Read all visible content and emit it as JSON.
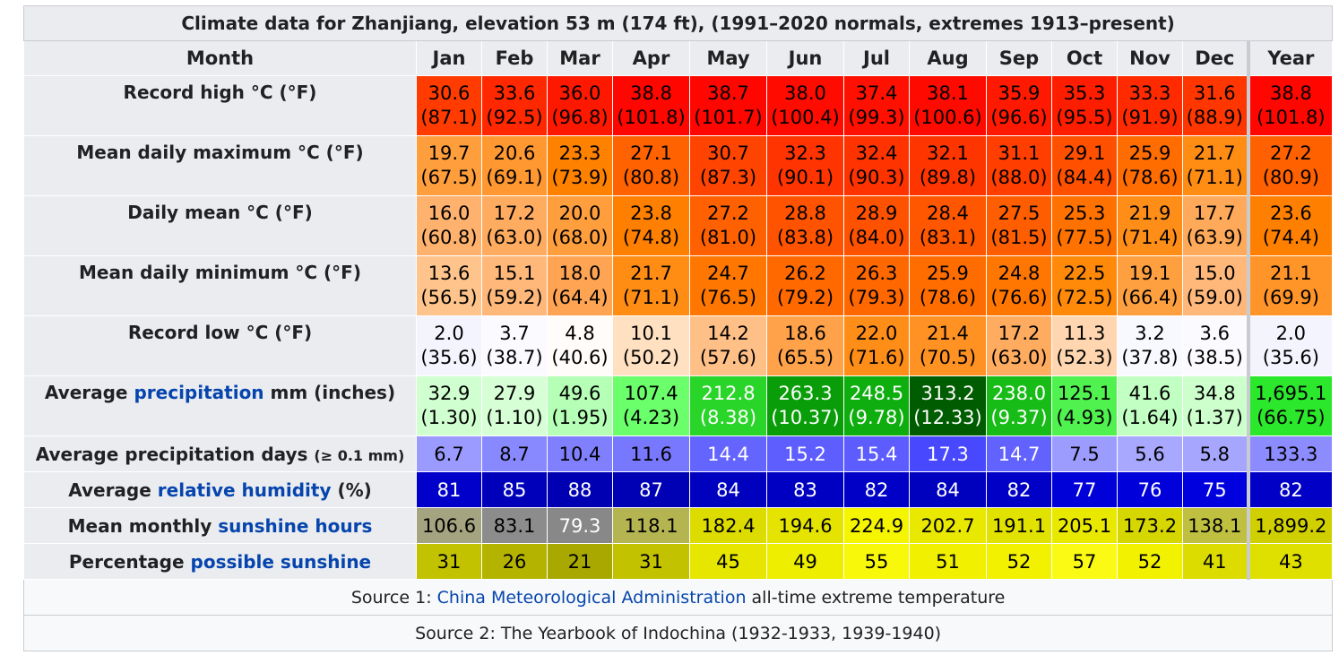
{
  "title": "Climate data for Zhanjiang, elevation 53 m (174 ft), (1991–2020 normals, extremes 1913–present)",
  "header": {
    "month_label": "Month",
    "months": [
      "Jan",
      "Feb",
      "Mar",
      "Apr",
      "May",
      "Jun",
      "Jul",
      "Aug",
      "Sep",
      "Oct",
      "Nov",
      "Dec"
    ],
    "year_label": "Year"
  },
  "rows": [
    {
      "label_parts": [
        {
          "text": "Record high °C (°F)"
        }
      ],
      "kind": "double",
      "cells": [
        [
          "30.6",
          "(87.1)",
          "#ff3b00",
          "#000"
        ],
        [
          "33.6",
          "(92.5)",
          "#ff2800",
          "#000"
        ],
        [
          "36.0",
          "(96.8)",
          "#ff1800",
          "#000"
        ],
        [
          "38.8",
          "(101.8)",
          "#ff0600",
          "#000"
        ],
        [
          "38.7",
          "(101.7)",
          "#ff0600",
          "#000"
        ],
        [
          "38.0",
          "(100.4)",
          "#ff0b00",
          "#000"
        ],
        [
          "37.4",
          "(99.3)",
          "#ff1000",
          "#000"
        ],
        [
          "38.1",
          "(100.6)",
          "#ff0a00",
          "#000"
        ],
        [
          "35.9",
          "(96.6)",
          "#ff1900",
          "#000"
        ],
        [
          "35.3",
          "(95.5)",
          "#ff1d00",
          "#000"
        ],
        [
          "33.3",
          "(91.9)",
          "#ff2a00",
          "#000"
        ],
        [
          "31.6",
          "(88.9)",
          "#ff3600",
          "#000"
        ],
        [
          "38.8",
          "(101.8)",
          "#ff0600",
          "#000"
        ]
      ]
    },
    {
      "label_parts": [
        {
          "text": "Mean daily maximum °C (°F)"
        }
      ],
      "kind": "double",
      "cells": [
        [
          "19.7",
          "(67.5)",
          "#ff9e3c",
          "#000"
        ],
        [
          "20.6",
          "(69.1)",
          "#ff9830",
          "#000"
        ],
        [
          "23.3",
          "(73.9)",
          "#ff8100",
          "#000"
        ],
        [
          "27.1",
          "(80.8)",
          "#ff6200",
          "#000"
        ],
        [
          "30.7",
          "(87.3)",
          "#ff4300",
          "#000"
        ],
        [
          "32.3",
          "(90.1)",
          "#ff3400",
          "#000"
        ],
        [
          "32.4",
          "(90.3)",
          "#ff3300",
          "#000"
        ],
        [
          "32.1",
          "(89.8)",
          "#ff3500",
          "#000"
        ],
        [
          "31.1",
          "(88.0)",
          "#ff3e00",
          "#000"
        ],
        [
          "29.1",
          "(84.4)",
          "#ff5000",
          "#000"
        ],
        [
          "25.9",
          "(78.6)",
          "#ff6c00",
          "#000"
        ],
        [
          "21.7",
          "(71.1)",
          "#ff8d14",
          "#000"
        ],
        [
          "27.2",
          "(80.9)",
          "#ff6100",
          "#000"
        ]
      ]
    },
    {
      "label_parts": [
        {
          "text": "Daily mean °C (°F)"
        }
      ],
      "kind": "double",
      "cells": [
        [
          "16.0",
          "(60.8)",
          "#ffb26e",
          "#000"
        ],
        [
          "17.2",
          "(63.0)",
          "#ffac60",
          "#000"
        ],
        [
          "20.0",
          "(68.0)",
          "#ff9e3c",
          "#000"
        ],
        [
          "23.8",
          "(74.8)",
          "#ff7f00",
          "#000"
        ],
        [
          "27.2",
          "(81.0)",
          "#ff6100",
          "#000"
        ],
        [
          "28.8",
          "(83.8)",
          "#ff5300",
          "#000"
        ],
        [
          "28.9",
          "(84.0)",
          "#ff5200",
          "#000"
        ],
        [
          "28.4",
          "(83.1)",
          "#ff5600",
          "#000"
        ],
        [
          "27.5",
          "(81.5)",
          "#ff5e00",
          "#000"
        ],
        [
          "25.3",
          "(77.5)",
          "#ff7200",
          "#000"
        ],
        [
          "21.9",
          "(71.4)",
          "#ff8e18",
          "#000"
        ],
        [
          "17.7",
          "(63.9)",
          "#ffaa5a",
          "#000"
        ],
        [
          "23.6",
          "(74.4)",
          "#ff8000",
          "#000"
        ]
      ]
    },
    {
      "label_parts": [
        {
          "text": "Mean daily minimum °C (°F)"
        }
      ],
      "kind": "double",
      "cells": [
        [
          "13.6",
          "(56.5)",
          "#ffc48c",
          "#000"
        ],
        [
          "15.1",
          "(59.2)",
          "#ffb87a",
          "#000"
        ],
        [
          "18.0",
          "(64.4)",
          "#ffa452",
          "#000"
        ],
        [
          "21.7",
          "(71.1)",
          "#ff8d14",
          "#000"
        ],
        [
          "24.7",
          "(76.5)",
          "#ff7700",
          "#000"
        ],
        [
          "26.2",
          "(79.2)",
          "#ff6900",
          "#000"
        ],
        [
          "26.3",
          "(79.3)",
          "#ff6800",
          "#000"
        ],
        [
          "25.9",
          "(78.6)",
          "#ff6c00",
          "#000"
        ],
        [
          "24.8",
          "(76.6)",
          "#ff7600",
          "#000"
        ],
        [
          "22.5",
          "(72.5)",
          "#ff8a0a",
          "#000"
        ],
        [
          "19.1",
          "(66.4)",
          "#ffa040",
          "#000"
        ],
        [
          "15.0",
          "(59.0)",
          "#ffb87a",
          "#000"
        ],
        [
          "21.1",
          "(69.9)",
          "#ff9428",
          "#000"
        ]
      ]
    },
    {
      "label_parts": [
        {
          "text": "Record low °C (°F)"
        }
      ],
      "kind": "double",
      "cells": [
        [
          "2.0",
          "(35.6)",
          "#f4f4ff",
          "#000"
        ],
        [
          "3.7",
          "(38.7)",
          "#fafaff",
          "#000"
        ],
        [
          "4.8",
          "(40.6)",
          "#fffcfa",
          "#000"
        ],
        [
          "10.1",
          "(50.2)",
          "#ffe0c0",
          "#000"
        ],
        [
          "14.2",
          "(57.6)",
          "#ffc088",
          "#000"
        ],
        [
          "18.6",
          "(65.5)",
          "#ffa24a",
          "#000"
        ],
        [
          "22.0",
          "(71.6)",
          "#ff8e18",
          "#000"
        ],
        [
          "21.4",
          "(70.5)",
          "#ff9222",
          "#000"
        ],
        [
          "17.2",
          "(63.0)",
          "#ffac60",
          "#000"
        ],
        [
          "11.3",
          "(52.3)",
          "#ffd6b0",
          "#000"
        ],
        [
          "3.2",
          "(37.8)",
          "#f8f8ff",
          "#000"
        ],
        [
          "3.6",
          "(38.5)",
          "#fafaff",
          "#000"
        ],
        [
          "2.0",
          "(35.6)",
          "#f4f4ff",
          "#000"
        ]
      ]
    },
    {
      "label_parts": [
        {
          "text": "Average "
        },
        {
          "text": "precipitation",
          "link": true
        },
        {
          "text": " mm (inches)"
        }
      ],
      "kind": "double",
      "cells": [
        [
          "32.9",
          "(1.30)",
          "#d0ffd0",
          "#000"
        ],
        [
          "27.9",
          "(1.10)",
          "#d6ffd6",
          "#000"
        ],
        [
          "49.6",
          "(1.95)",
          "#b6ffb6",
          "#000"
        ],
        [
          "107.4",
          "(4.23)",
          "#6cff6c",
          "#000"
        ],
        [
          "212.8",
          "(8.38)",
          "#2ad52a",
          "#fff"
        ],
        [
          "263.3",
          "(10.37)",
          "#099e09",
          "#fff"
        ],
        [
          "248.5",
          "(9.78)",
          "#0fae0f",
          "#fff"
        ],
        [
          "313.2",
          "(12.33)",
          "#005c00",
          "#fff"
        ],
        [
          "238.0",
          "(9.37)",
          "#17bc17",
          "#fff"
        ],
        [
          "125.1",
          "(4.93)",
          "#50f250",
          "#000"
        ],
        [
          "41.6",
          "(1.64)",
          "#c2ffc2",
          "#000"
        ],
        [
          "34.8",
          "(1.37)",
          "#ccffcc",
          "#000"
        ],
        [
          "1,695.1",
          "(66.75)",
          "#2ce82c",
          "#000"
        ]
      ]
    },
    {
      "label_parts": [
        {
          "text": "Average precipitation days "
        },
        {
          "text": "(≥ 0.1 mm)",
          "small": true
        }
      ],
      "kind": "single",
      "cells": [
        [
          "6.7",
          "",
          "#9a9aff",
          "#000"
        ],
        [
          "8.7",
          "",
          "#8888ff",
          "#000"
        ],
        [
          "10.4",
          "",
          "#8080ff",
          "#000"
        ],
        [
          "11.6",
          "",
          "#7878ff",
          "#000"
        ],
        [
          "14.4",
          "",
          "#6464ff",
          "#fff"
        ],
        [
          "15.2",
          "",
          "#5e5eff",
          "#fff"
        ],
        [
          "15.4",
          "",
          "#5c5cff",
          "#fff"
        ],
        [
          "17.3",
          "",
          "#4848ff",
          "#fff"
        ],
        [
          "14.7",
          "",
          "#6262ff",
          "#fff"
        ],
        [
          "7.5",
          "",
          "#9c9cff",
          "#000"
        ],
        [
          "5.6",
          "",
          "#a8a8ff",
          "#000"
        ],
        [
          "5.8",
          "",
          "#a6a6ff",
          "#000"
        ],
        [
          "133.3",
          "",
          "#8c8cff",
          "#000"
        ]
      ]
    },
    {
      "label_parts": [
        {
          "text": "Average "
        },
        {
          "text": "relative humidity",
          "link": true
        },
        {
          "text": " (%)"
        }
      ],
      "kind": "single",
      "cells": [
        [
          "81",
          "",
          "#0000ca",
          "#fff"
        ],
        [
          "85",
          "",
          "#0000bb",
          "#fff"
        ],
        [
          "88",
          "",
          "#0000b2",
          "#fff"
        ],
        [
          "87",
          "",
          "#0000b5",
          "#fff"
        ],
        [
          "84",
          "",
          "#0000bf",
          "#fff"
        ],
        [
          "83",
          "",
          "#0000c2",
          "#fff"
        ],
        [
          "82",
          "",
          "#0000c6",
          "#fff"
        ],
        [
          "84",
          "",
          "#0000bf",
          "#fff"
        ],
        [
          "82",
          "",
          "#0000c6",
          "#fff"
        ],
        [
          "77",
          "",
          "#0000d8",
          "#fff"
        ],
        [
          "76",
          "",
          "#0000db",
          "#fff"
        ],
        [
          "75",
          "",
          "#0000de",
          "#fff"
        ],
        [
          "82",
          "",
          "#0000c6",
          "#fff"
        ]
      ]
    },
    {
      "label_parts": [
        {
          "text": "Mean monthly "
        },
        {
          "text": "sunshine hours",
          "link": true
        }
      ],
      "kind": "single",
      "cells": [
        [
          "106.6",
          "",
          "#a4a480",
          "#000"
        ],
        [
          "83.1",
          "",
          "#8c8c8c",
          "#000"
        ],
        [
          "79.3",
          "",
          "#888888",
          "#fff"
        ],
        [
          "118.1",
          "",
          "#b4b450",
          "#000"
        ],
        [
          "182.4",
          "",
          "#dcdc00",
          "#000"
        ],
        [
          "194.6",
          "",
          "#e4e400",
          "#000"
        ],
        [
          "224.9",
          "",
          "#f5f500",
          "#000"
        ],
        [
          "202.7",
          "",
          "#e8e800",
          "#000"
        ],
        [
          "191.1",
          "",
          "#e2e200",
          "#000"
        ],
        [
          "205.1",
          "",
          "#e9e900",
          "#000"
        ],
        [
          "173.2",
          "",
          "#d6d600",
          "#000"
        ],
        [
          "138.1",
          "",
          "#c0c040",
          "#000"
        ],
        [
          "1,899.2",
          "",
          "#d0d000",
          "#000"
        ]
      ]
    },
    {
      "label_parts": [
        {
          "text": "Percentage "
        },
        {
          "text": "possible sunshine",
          "link": true
        }
      ],
      "kind": "single",
      "cells": [
        [
          "31",
          "",
          "#c2c200",
          "#000"
        ],
        [
          "26",
          "",
          "#b4b400",
          "#000"
        ],
        [
          "21",
          "",
          "#a8a800",
          "#000"
        ],
        [
          "31",
          "",
          "#c2c200",
          "#000"
        ],
        [
          "45",
          "",
          "#e6e600",
          "#000"
        ],
        [
          "49",
          "",
          "#eeee00",
          "#000"
        ],
        [
          "55",
          "",
          "#f8f80a",
          "#000"
        ],
        [
          "51",
          "",
          "#f0f000",
          "#000"
        ],
        [
          "52",
          "",
          "#f2f200",
          "#000"
        ],
        [
          "57",
          "",
          "#fafa14",
          "#000"
        ],
        [
          "52",
          "",
          "#f2f200",
          "#000"
        ],
        [
          "41",
          "",
          "#dcdc00",
          "#000"
        ],
        [
          "43",
          "",
          "#e0e000",
          "#000"
        ]
      ]
    }
  ],
  "sources": [
    {
      "prefix": "Source 1: ",
      "link": "China Meteorological Administration",
      "suffix": " all-time extreme temperature"
    },
    {
      "prefix": "Source 2: The Yearbook of Indochina (1932-1933, 1939-1940)",
      "link": "",
      "suffix": ""
    }
  ]
}
